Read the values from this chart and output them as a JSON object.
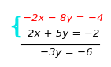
{
  "line1": {
    "text": "−2x − 8y = −4",
    "color": "#ff0000"
  },
  "line2": {
    "text": "2x + 5y = −2",
    "color": "#000000"
  },
  "line3": {
    "text": "−3y = −6",
    "color": "#000000"
  },
  "bg_color": "#ffffff",
  "brace_color": "#00e5e5",
  "line_color": "#000000",
  "fontsize": 9.5
}
